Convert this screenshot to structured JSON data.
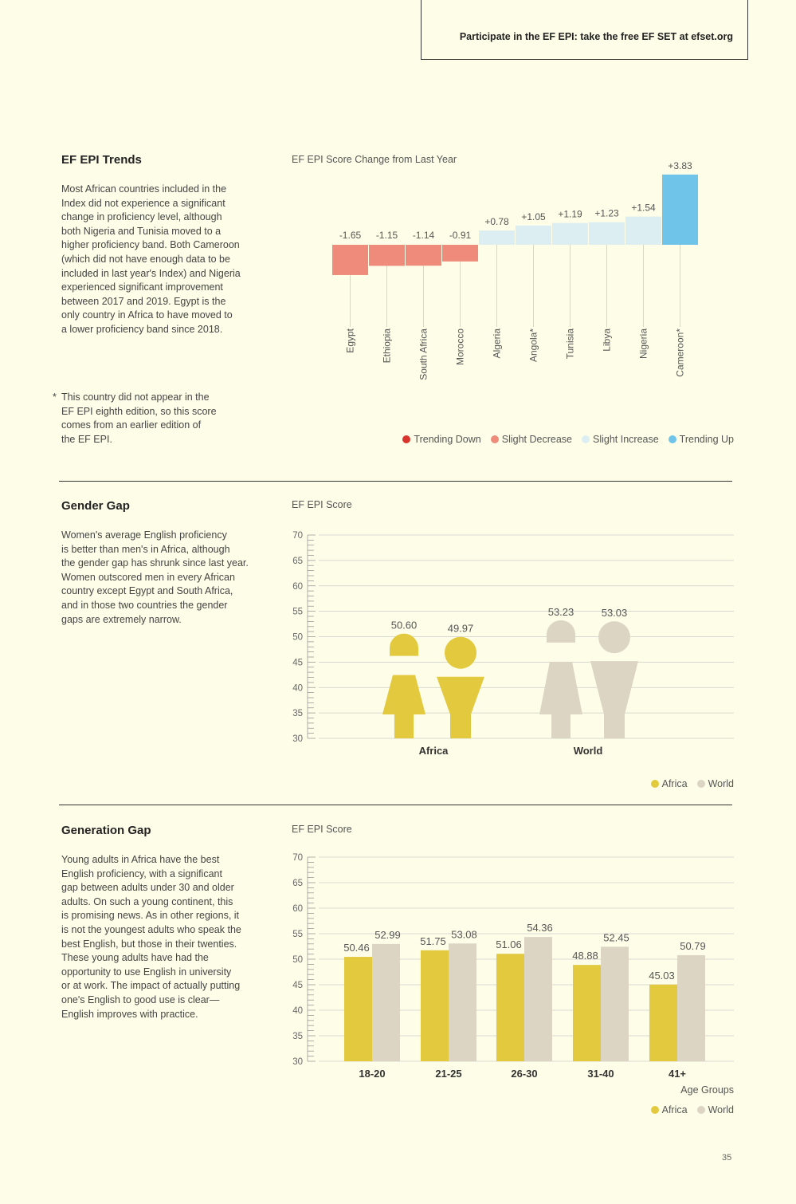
{
  "header": {
    "banner": "Participate in the EF EPI: take the free EF SET at efset.org"
  },
  "trends": {
    "title": "EF EPI Trends",
    "text": "Most African countries included in the\nIndex did not experience a significant\nchange in proficiency level, although\nboth Nigeria and Tunisia moved to a\nhigher proficiency band. Both Cameroon\n(which did not have enough data to be\nincluded in last year's Index) and Nigeria\nexperienced significant improvement\nbetween 2017 and 2019. Egypt is the\nonly country in Africa to have moved to\na lower proficiency band since 2018.",
    "footnote_mark": "*",
    "footnote": "This country did not appear in the\nEF EPI eighth edition, so this score\ncomes from an earlier edition of\nthe EF EPI.",
    "chart_title": "EF EPI Score Change from Last Year",
    "legend": [
      {
        "label": "Trending Down",
        "color": "#d9342b"
      },
      {
        "label": "Slight Decrease",
        "color": "#ee8b7b"
      },
      {
        "label": "Slight Increase",
        "color": "#dceef2"
      },
      {
        "label": "Trending Up",
        "color": "#6fc4ea"
      }
    ]
  },
  "gender": {
    "title": "Gender Gap",
    "text": "Women's average English proficiency\nis better than men's in Africa, although\nthe gender gap has shrunk since last year.\nWomen outscored men in every African\ncountry except Egypt and South Africa,\nand in those two countries the gender\ngaps are extremely narrow.",
    "chart_title": "EF EPI Score",
    "legend": [
      {
        "label": "Africa",
        "color": "#e3c93e"
      },
      {
        "label": "World",
        "color": "#ddd5c4"
      }
    ]
  },
  "generation": {
    "title": "Generation Gap",
    "text": "Young adults in Africa have the best\nEnglish proficiency, with a significant\ngap between adults under 30 and older\nadults. On such a young continent, this\nis promising news. As in other regions, it\nis not the youngest adults who speak the\nbest English, but those in their twenties.\nThese young adults have had the\nopportunity to use English in university\nor at work. The impact of actually putting\none's English to good use is clear—\nEnglish improves with practice.",
    "chart_title": "EF EPI Score",
    "legend": [
      {
        "label": "Africa",
        "color": "#e3c93e"
      },
      {
        "label": "World",
        "color": "#ddd5c4"
      }
    ]
  },
  "page_number": "35",
  "chart_data": [
    {
      "type": "bar",
      "title": "EF EPI Score Change from Last Year",
      "categories": [
        "Egypt",
        "Ethiopia",
        "South Africa",
        "Morocco",
        "Algeria",
        "Angola*",
        "Tunisia",
        "Libya",
        "Nigeria",
        "Cameroon*"
      ],
      "values": [
        -1.65,
        -1.15,
        -1.14,
        -0.91,
        0.78,
        1.05,
        1.19,
        1.23,
        1.54,
        3.83
      ],
      "labels": [
        "-1.65",
        "-1.15",
        "-1.14",
        "-0.91",
        "+0.78",
        "+1.05",
        "+1.19",
        "+1.23",
        "+1.54",
        "+3.83"
      ],
      "classes": [
        "Slight Decrease",
        "Slight Decrease",
        "Slight Decrease",
        "Slight Decrease",
        "Slight Increase",
        "Slight Increase",
        "Slight Increase",
        "Slight Increase",
        "Slight Increase",
        "Trending Up"
      ],
      "colors": [
        "#ee8b7b",
        "#ee8b7b",
        "#ee8b7b",
        "#ee8b7b",
        "#dceef2",
        "#dceef2",
        "#dceef2",
        "#dceef2",
        "#dceef2",
        "#6fc4ea"
      ],
      "legend": "bottom-right"
    },
    {
      "type": "bar",
      "title": "EF EPI Score",
      "categories": [
        "Africa",
        "World"
      ],
      "series": [
        {
          "name": "Women",
          "values": [
            50.6,
            53.23
          ]
        },
        {
          "name": "Men",
          "values": [
            49.97,
            53.03
          ]
        }
      ],
      "labels": [
        [
          "50.60",
          "49.97"
        ],
        [
          "53.23",
          "53.03"
        ]
      ],
      "colors": [
        "#e3c93e",
        "#ddd5c4"
      ],
      "ylim": [
        30,
        70
      ],
      "yticks": [
        30,
        35,
        40,
        45,
        50,
        55,
        60,
        65,
        70
      ],
      "grid": true,
      "legend": "bottom-right"
    },
    {
      "type": "bar",
      "title": "EF EPI Score",
      "xlabel": "Age Groups",
      "categories": [
        "18-20",
        "21-25",
        "26-30",
        "31-40",
        "41+"
      ],
      "series": [
        {
          "name": "Africa",
          "values": [
            50.46,
            51.75,
            51.06,
            48.88,
            45.03
          ],
          "color": "#e3c93e"
        },
        {
          "name": "World",
          "values": [
            52.99,
            53.08,
            54.36,
            52.45,
            50.79
          ],
          "color": "#ddd5c4"
        }
      ],
      "ylim": [
        30,
        70
      ],
      "yticks": [
        30,
        35,
        40,
        45,
        50,
        55,
        60,
        65,
        70
      ],
      "grid": true,
      "legend": "bottom-right"
    }
  ]
}
